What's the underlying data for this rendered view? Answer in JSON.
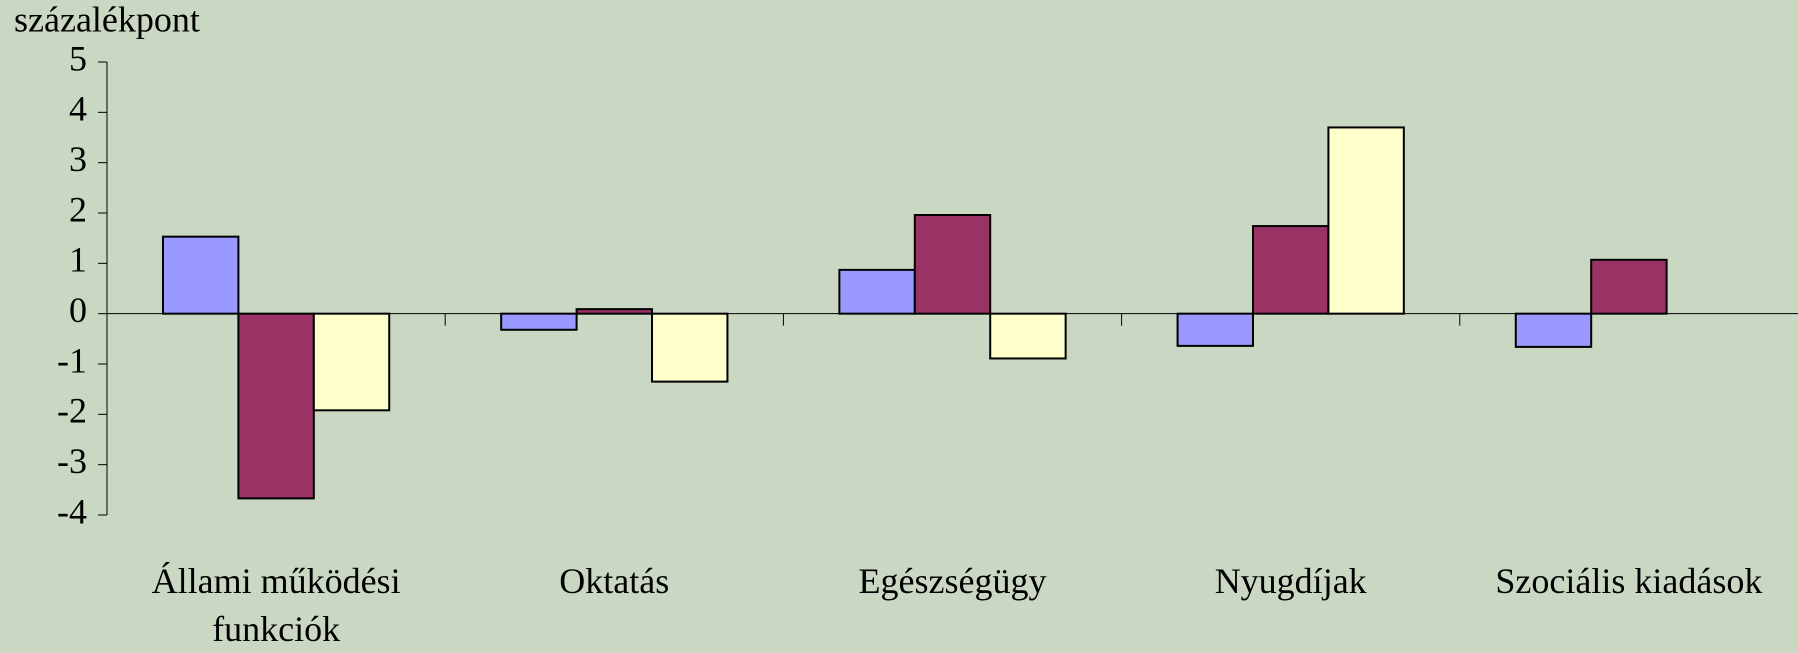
{
  "chart_data": {
    "type": "bar",
    "y_label": "százalékpont",
    "categories": [
      "Állami működési funkciók",
      "Oktatás",
      "Egészségügy",
      "Nyugdíjak",
      "Szociális kiadások"
    ],
    "series": [
      {
        "color": "#9999ff",
        "values": [
          1.53,
          -0.32,
          0.87,
          -0.64,
          -0.66
        ]
      },
      {
        "color": "#993366",
        "values": [
          -3.67,
          0.09,
          1.96,
          1.74,
          1.07
        ]
      },
      {
        "color": "#ffffcc",
        "values": [
          -1.92,
          -1.35,
          -0.89,
          3.7,
          null
        ]
      }
    ],
    "ylim": [
      -4,
      5
    ],
    "yticks": [
      -4,
      -3,
      -2,
      -1,
      0,
      1,
      2,
      3,
      4,
      5
    ]
  }
}
